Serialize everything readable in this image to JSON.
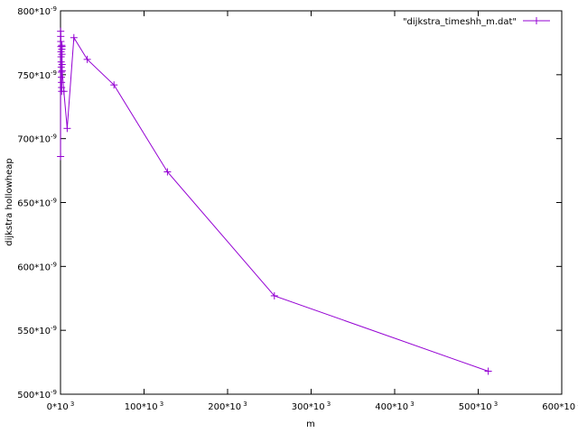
{
  "chart_data": {
    "type": "line",
    "title": "",
    "xlabel": "m",
    "ylabel": "dijkstra hollowheap",
    "xlim": [
      0,
      600000
    ],
    "ylim": [
      5e-07,
      8e-07
    ],
    "grid": false,
    "legend_position": "top-right",
    "x_ticks": [
      {
        "value": 0,
        "base": "0*10",
        "exp": " 3"
      },
      {
        "value": 100000,
        "base": "100*10",
        "exp": " 3"
      },
      {
        "value": 200000,
        "base": "200*10",
        "exp": " 3"
      },
      {
        "value": 300000,
        "base": "300*10",
        "exp": " 3"
      },
      {
        "value": 400000,
        "base": "400*10",
        "exp": " 3"
      },
      {
        "value": 500000,
        "base": "500*10",
        "exp": " 3"
      },
      {
        "value": 600000,
        "base": "600*10",
        "exp": " 3"
      }
    ],
    "y_ticks": [
      {
        "value": 5e-07,
        "base": "500*10",
        "exp": "-9"
      },
      {
        "value": 5.5e-07,
        "base": "550*10",
        "exp": "-9"
      },
      {
        "value": 6e-07,
        "base": "600*10",
        "exp": "-9"
      },
      {
        "value": 6.5e-07,
        "base": "650*10",
        "exp": "-9"
      },
      {
        "value": 7e-07,
        "base": "700*10",
        "exp": "-9"
      },
      {
        "value": 7.5e-07,
        "base": "750*10",
        "exp": "-9"
      },
      {
        "value": 8e-07,
        "base": "800*10",
        "exp": "-9"
      }
    ],
    "series": [
      {
        "name": "\"dijkstra_timeshh_m.dat\"",
        "color": "#9400d3",
        "marker": "plus",
        "x": [
          100,
          200,
          300,
          400,
          500,
          600,
          700,
          800,
          900,
          1000,
          1100,
          1200,
          1300,
          1400,
          1500,
          1600,
          1700,
          1800,
          1900,
          2000,
          4000,
          8000,
          16000,
          32000,
          64000,
          128000,
          256000,
          512000
        ],
        "y": [
          6.86e-07,
          7.84e-07,
          7.8e-07,
          7.76e-07,
          7.72e-07,
          7.68e-07,
          7.64e-07,
          7.6e-07,
          7.56e-07,
          7.52e-07,
          7.48e-07,
          7.44e-07,
          7.4e-07,
          7.37e-07,
          7.73e-07,
          7.7e-07,
          7.66e-07,
          7.72e-07,
          7.58e-07,
          7.53e-07,
          7.37e-07,
          7.08e-07,
          7.79e-07,
          7.62e-07,
          7.42e-07,
          6.74e-07,
          5.77e-07,
          5.18e-07
        ]
      }
    ]
  }
}
